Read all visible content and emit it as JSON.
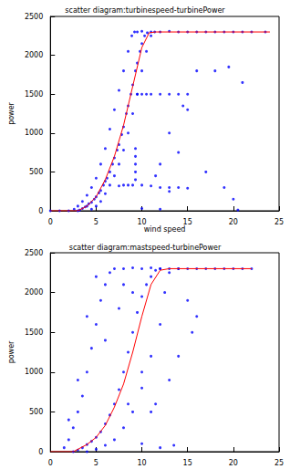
{
  "chart_data": [
    {
      "type": "scatter",
      "title": "scatter diagram:turbinespeed-turbinePower",
      "x_label": "wind speed",
      "y_label": "power",
      "xlim": [
        0,
        25
      ],
      "xticks": [
        0,
        5,
        10,
        15,
        20,
        25
      ],
      "ylim": [
        0,
        2500
      ],
      "yticks": [
        0,
        500,
        1000,
        1500,
        2000,
        2500
      ],
      "grid": false,
      "series": [
        {
          "type": "scatter",
          "color": "#0000ff",
          "marker": "dot",
          "x": [
            0,
            1,
            2,
            3,
            3.2,
            3.5,
            3.8,
            4,
            4.2,
            4.5,
            4.8,
            5,
            5.3,
            5.5,
            5.8,
            6,
            6.2,
            6.5,
            6.8,
            7,
            7.3,
            7.5,
            7.8,
            8,
            8.3,
            8.5,
            8.8,
            9,
            9.3,
            9.5,
            9.8,
            10,
            10.3,
            10.6,
            2.6,
            3,
            3.5,
            4,
            4.5,
            5,
            5.5,
            6,
            6.5,
            7,
            7.5,
            8,
            8.5,
            8.9,
            9.2,
            4.5,
            5,
            5.5,
            6,
            6.5,
            7,
            7.5,
            8,
            8.5,
            9,
            9.5,
            10,
            10.5,
            11,
            11.4,
            9.5,
            10,
            11,
            12,
            13,
            14,
            15,
            16,
            17,
            18,
            19,
            20,
            21,
            22,
            23.5,
            9.5,
            10,
            10.5,
            11,
            12,
            13,
            14,
            15,
            7.5,
            8,
            8.5,
            9,
            10,
            11,
            12,
            13,
            14,
            15,
            9.3,
            9.3,
            9.3,
            9.3,
            9.3,
            12,
            13,
            14,
            15,
            14.5,
            17,
            18,
            19,
            19.5,
            20,
            21,
            16,
            20.5,
            10,
            12,
            13,
            11.5
          ],
          "values": [
            0,
            0,
            0,
            0,
            10,
            30,
            50,
            60,
            90,
            110,
            150,
            180,
            230,
            260,
            330,
            380,
            420,
            500,
            600,
            680,
            780,
            850,
            980,
            1080,
            1250,
            1350,
            1500,
            1620,
            1800,
            1900,
            2050,
            2150,
            2250,
            2290,
            20,
            60,
            120,
            200,
            300,
            420,
            600,
            800,
            1050,
            1300,
            1550,
            1800,
            2050,
            2250,
            2300,
            20,
            60,
            120,
            220,
            330,
            450,
            600,
            780,
            1000,
            1250,
            1500,
            1800,
            2050,
            2250,
            2300,
            2300,
            2310,
            2300,
            2300,
            2310,
            2300,
            2300,
            2300,
            2300,
            2300,
            2300,
            2300,
            2300,
            2300,
            2300,
            1500,
            1500,
            1500,
            1500,
            1500,
            1500,
            1500,
            1500,
            320,
            330,
            330,
            330,
            330,
            320,
            300,
            300,
            300,
            290,
            400,
            500,
            600,
            700,
            800,
            600,
            1000,
            750,
            1300,
            1350,
            500,
            1800,
            300,
            1850,
            150,
            1650,
            1800,
            10,
            30,
            20,
            250,
            450
          ]
        },
        {
          "type": "line",
          "color": "#ff0000",
          "line_style": "solid",
          "x": [
            0,
            3,
            4,
            5,
            6,
            7,
            8,
            9,
            10,
            10.8,
            11.5,
            24
          ],
          "values": [
            0,
            0,
            60,
            180,
            400,
            700,
            1100,
            1600,
            2100,
            2290,
            2300,
            2300
          ]
        }
      ]
    },
    {
      "type": "scatter",
      "title": "scatter diagram:mastspeed-turbinePower",
      "y_label": "power",
      "xlim": [
        0,
        25
      ],
      "xticks": [
        0,
        5,
        10,
        15,
        20,
        25
      ],
      "ylim": [
        0,
        2500
      ],
      "yticks": [
        0,
        500,
        1000,
        1500,
        2000,
        2500
      ],
      "grid": false,
      "series": [
        {
          "type": "scatter",
          "color": "#0000ff",
          "marker": "dot",
          "x": [
            2.5,
            3,
            3.5,
            4,
            4.5,
            5,
            5.5,
            6,
            6.5,
            7,
            7.5,
            8,
            8.5,
            9,
            9.5,
            10,
            10.5,
            11,
            11.5,
            12,
            1.5,
            2,
            2.5,
            3,
            3.5,
            4,
            4.5,
            5,
            5.5,
            6,
            6.5,
            7,
            2,
            3,
            4,
            5,
            4,
            5,
            6,
            7,
            8,
            9,
            10,
            11,
            12,
            12.5,
            13,
            14,
            11.5,
            13,
            14,
            15,
            8,
            9,
            10,
            11,
            12,
            13,
            14,
            15,
            16,
            17,
            18,
            19,
            20,
            21,
            22,
            8,
            9,
            7.5,
            6,
            8.5,
            10,
            12,
            13.5,
            15.5,
            16,
            10,
            11
          ],
          "values": [
            0,
            20,
            50,
            90,
            130,
            180,
            250,
            350,
            460,
            600,
            780,
            1000,
            1250,
            1500,
            1750,
            1950,
            2100,
            2200,
            2280,
            2300,
            50,
            150,
            300,
            500,
            700,
            1000,
            1300,
            1600,
            1900,
            2100,
            2250,
            2300,
            400,
            900,
            1700,
            2200,
            0,
            30,
            80,
            150,
            300,
            500,
            800,
            1200,
            1600,
            2000,
            2250,
            2300,
            600,
            900,
            1200,
            1900,
            2300,
            2310,
            2300,
            2310,
            2300,
            2300,
            2300,
            2300,
            2300,
            2300,
            2300,
            2300,
            2300,
            2300,
            2300,
            2100,
            2000,
            1800,
            1400,
            600,
            100,
            50,
            80,
            1500,
            1700,
            1000,
            500
          ]
        },
        {
          "type": "line",
          "color": "#ff0000",
          "line_style": "solid",
          "x": [
            0,
            2.5,
            4,
            5,
            6,
            7,
            8,
            9,
            10,
            11,
            12,
            13,
            22
          ],
          "values": [
            0,
            0,
            90,
            180,
            330,
            560,
            850,
            1250,
            1700,
            2100,
            2280,
            2300,
            2300
          ]
        }
      ]
    }
  ]
}
